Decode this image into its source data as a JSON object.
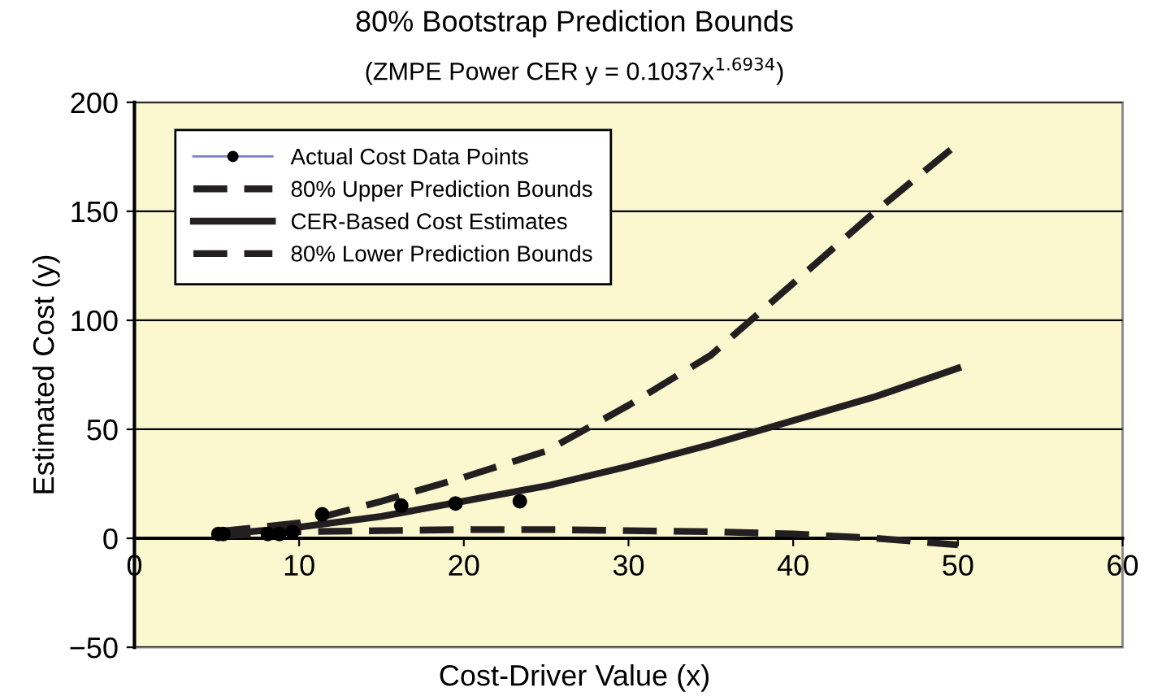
{
  "chart_data": {
    "type": "line",
    "title": "80% Bootstrap Prediction Bounds",
    "subtitle": "(ZMPE Power CER y = 0.1037x$^{1.6934}$)",
    "xlabel": "Cost-Driver Value (x)",
    "ylabel": "Estimated Cost (y)",
    "xlim": [
      0,
      60
    ],
    "xticks": [
      0,
      10,
      20,
      30,
      40,
      50,
      60
    ],
    "ylim": [
      -50,
      200
    ],
    "yticks": [
      {
        "value": -50,
        "label": "−50"
      },
      0,
      50,
      100,
      150,
      200
    ],
    "grid": "y",
    "legend": "top left",
    "series": [
      {
        "name": "Actual Cost Data Points",
        "type": "scatter",
        "marker": "circle",
        "color": "#000000",
        "x": [
          5.1,
          5.4,
          8.1,
          8.8,
          9.6,
          11.4,
          16.2,
          19.5,
          23.4
        ],
        "values": [
          2,
          2,
          2,
          2,
          3,
          11,
          15,
          16,
          17
        ]
      },
      {
        "name": "80% Upper Prediction Bounds",
        "line_style": "dashed",
        "color": "#231f20",
        "x": [
          5,
          10,
          15,
          20,
          25,
          30,
          35,
          40,
          45,
          50
        ],
        "values": [
          3,
          7,
          17,
          28,
          40,
          61,
          84,
          117,
          150,
          181
        ]
      },
      {
        "name": "CER-Based Cost Estimates",
        "line_style": "solid",
        "color": "#231f20",
        "x": [
          5,
          10,
          15,
          20,
          25,
          30,
          35,
          40,
          45,
          50
        ],
        "values": [
          1.6,
          5.1,
          10,
          17,
          24,
          33,
          43,
          54,
          65,
          78
        ]
      },
      {
        "name": "80% Lower Prediction Bounds",
        "line_style": "dashed",
        "color": "#231f20",
        "x": [
          5,
          10,
          15,
          20,
          25,
          30,
          35,
          40,
          45,
          50
        ],
        "values": [
          1,
          3,
          3.5,
          4,
          4,
          3.5,
          3,
          2,
          0,
          -3
        ]
      }
    ]
  }
}
